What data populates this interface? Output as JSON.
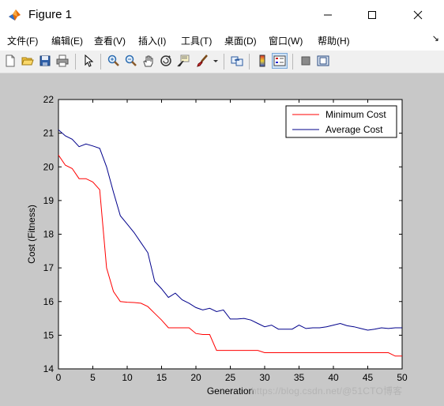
{
  "window": {
    "title": "Figure 1"
  },
  "menu": {
    "items": [
      {
        "label": "文件(F)",
        "icon": "menu"
      },
      {
        "label": "编辑(E)"
      },
      {
        "label": "查看(V)"
      },
      {
        "label": "插入(I)"
      },
      {
        "label": "工具(T)"
      },
      {
        "label": "桌面(D)"
      },
      {
        "label": "窗口(W)"
      },
      {
        "label": "帮助(H)"
      }
    ],
    "overflow_icon": "chevron-down-icon"
  },
  "toolbar": {
    "icons": [
      "new-figure-icon",
      "open-file-icon",
      "save-icon",
      "print-icon",
      "select-arrow-icon",
      "zoom-in-icon",
      "zoom-out-icon",
      "pan-hand-icon",
      "rotate-3d-icon",
      "data-cursor-icon",
      "brush-icon",
      "link-plot-icon",
      "colorbar-icon",
      "legend-icon",
      "hide-plot-tools-icon",
      "show-plot-tools-icon"
    ]
  },
  "chart_data": {
    "type": "line",
    "xlabel": "Generation",
    "ylabel": "Cost (Fitness)",
    "xlim": [
      0,
      50
    ],
    "ylim": [
      14,
      22
    ],
    "xticks": [
      0,
      5,
      10,
      15,
      20,
      25,
      30,
      35,
      40,
      45,
      50
    ],
    "yticks": [
      14,
      15,
      16,
      17,
      18,
      19,
      20,
      21,
      22
    ],
    "legend_position": "top-right",
    "series": [
      {
        "name": "Minimum Cost",
        "color": "#ff0000",
        "x": [
          0,
          1,
          2,
          3,
          4,
          5,
          6,
          7,
          8,
          9,
          10,
          11,
          12,
          13,
          14,
          15,
          16,
          17,
          18,
          19,
          20,
          21,
          22,
          23,
          24,
          25,
          26,
          27,
          28,
          29,
          30,
          31,
          32,
          33,
          34,
          35,
          36,
          37,
          38,
          39,
          40,
          41,
          42,
          43,
          44,
          45,
          46,
          47,
          48,
          49,
          50
        ],
        "values": [
          20.35,
          20.05,
          19.95,
          19.65,
          19.65,
          19.55,
          19.32,
          17.0,
          16.3,
          16.0,
          15.98,
          15.97,
          15.95,
          15.85,
          15.65,
          15.45,
          15.22,
          15.22,
          15.22,
          15.22,
          15.05,
          15.02,
          15.02,
          14.55,
          14.55,
          14.55,
          14.55,
          14.55,
          14.55,
          14.55,
          14.48,
          14.48,
          14.48,
          14.48,
          14.48,
          14.48,
          14.48,
          14.48,
          14.48,
          14.48,
          14.48,
          14.48,
          14.48,
          14.48,
          14.48,
          14.48,
          14.48,
          14.48,
          14.48,
          14.38,
          14.38
        ]
      },
      {
        "name": "Average Cost",
        "color": "#00008b",
        "x": [
          0,
          1,
          2,
          3,
          4,
          5,
          6,
          7,
          8,
          9,
          10,
          11,
          12,
          13,
          14,
          15,
          16,
          17,
          18,
          19,
          20,
          21,
          22,
          23,
          24,
          25,
          26,
          27,
          28,
          29,
          30,
          31,
          32,
          33,
          34,
          35,
          36,
          37,
          38,
          39,
          40,
          41,
          42,
          43,
          44,
          45,
          46,
          47,
          48,
          49,
          50
        ],
        "values": [
          21.1,
          20.92,
          20.82,
          20.6,
          20.68,
          20.62,
          20.55,
          20.0,
          19.25,
          18.55,
          18.3,
          18.05,
          17.75,
          17.45,
          16.6,
          16.38,
          16.12,
          16.25,
          16.05,
          15.95,
          15.82,
          15.75,
          15.8,
          15.7,
          15.75,
          15.48,
          15.48,
          15.5,
          15.45,
          15.35,
          15.25,
          15.3,
          15.18,
          15.18,
          15.18,
          15.3,
          15.2,
          15.22,
          15.22,
          15.25,
          15.3,
          15.35,
          15.28,
          15.25,
          15.2,
          15.15,
          15.18,
          15.22,
          15.2,
          15.22,
          15.22
        ]
      }
    ]
  },
  "watermark": {
    "text": "https://blog.csdn.net/@51CTO博客"
  }
}
